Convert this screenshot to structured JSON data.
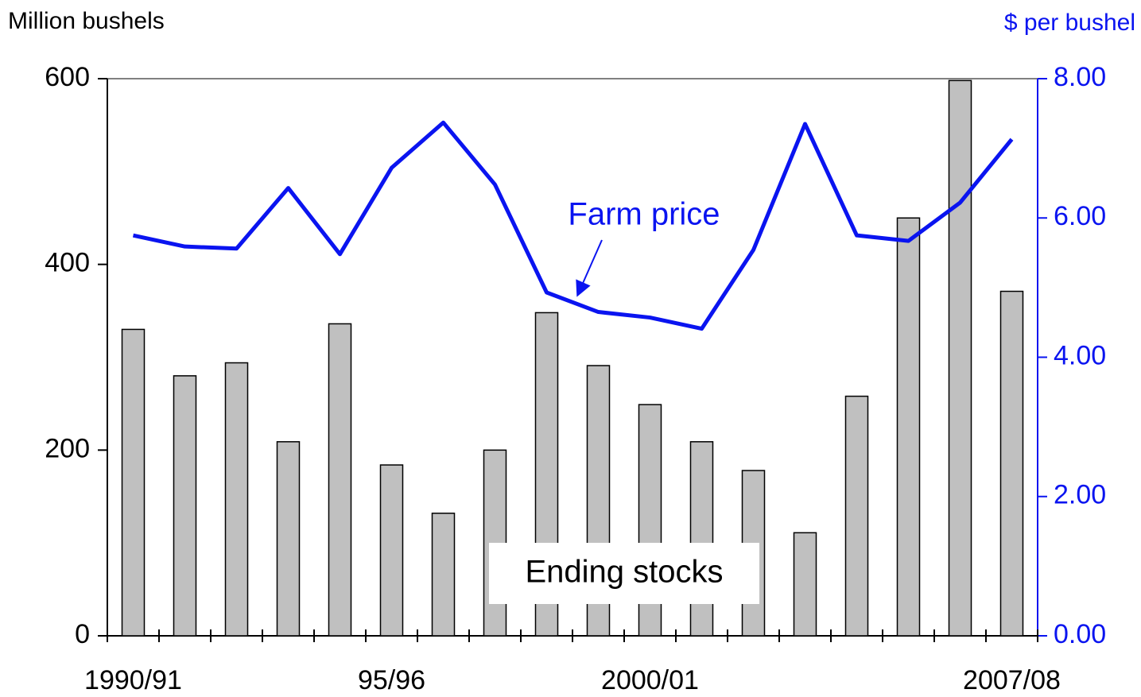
{
  "chart_data": {
    "type": "bar-line",
    "y_label": "Million bushels",
    "y2_label": "$ per bushel",
    "categories": [
      "1990/91",
      null,
      null,
      null,
      null,
      "95/96",
      null,
      null,
      null,
      null,
      "2000/01",
      null,
      null,
      null,
      null,
      null,
      null,
      "2007/08"
    ],
    "series": [
      {
        "name": "Ending stocks",
        "type": "bar",
        "color": "#c0c0c0",
        "values": [
          330,
          280,
          294,
          209,
          336,
          184,
          132,
          200,
          348,
          291,
          249,
          209,
          178,
          111,
          258,
          450,
          598,
          371
        ]
      },
      {
        "name": "Farm price",
        "type": "line",
        "axis": "y2",
        "color": "#0a14f0",
        "values": [
          5.75,
          5.59,
          5.56,
          6.43,
          5.48,
          6.72,
          7.37,
          6.48,
          4.93,
          4.65,
          4.57,
          4.41,
          5.54,
          7.35,
          5.75,
          5.67,
          6.22,
          7.13
        ]
      }
    ],
    "ylim": [
      0,
      600
    ],
    "yticks": [
      0,
      200,
      400,
      600
    ],
    "y2lim": [
      0,
      8
    ],
    "y2ticks": [
      {
        "value": 0,
        "label": "0.00"
      },
      {
        "value": 2,
        "label": "2.00"
      },
      {
        "value": 4,
        "label": "4.00"
      },
      {
        "value": 6,
        "label": "6.00"
      },
      {
        "value": 8,
        "label": "8.00"
      }
    ]
  }
}
